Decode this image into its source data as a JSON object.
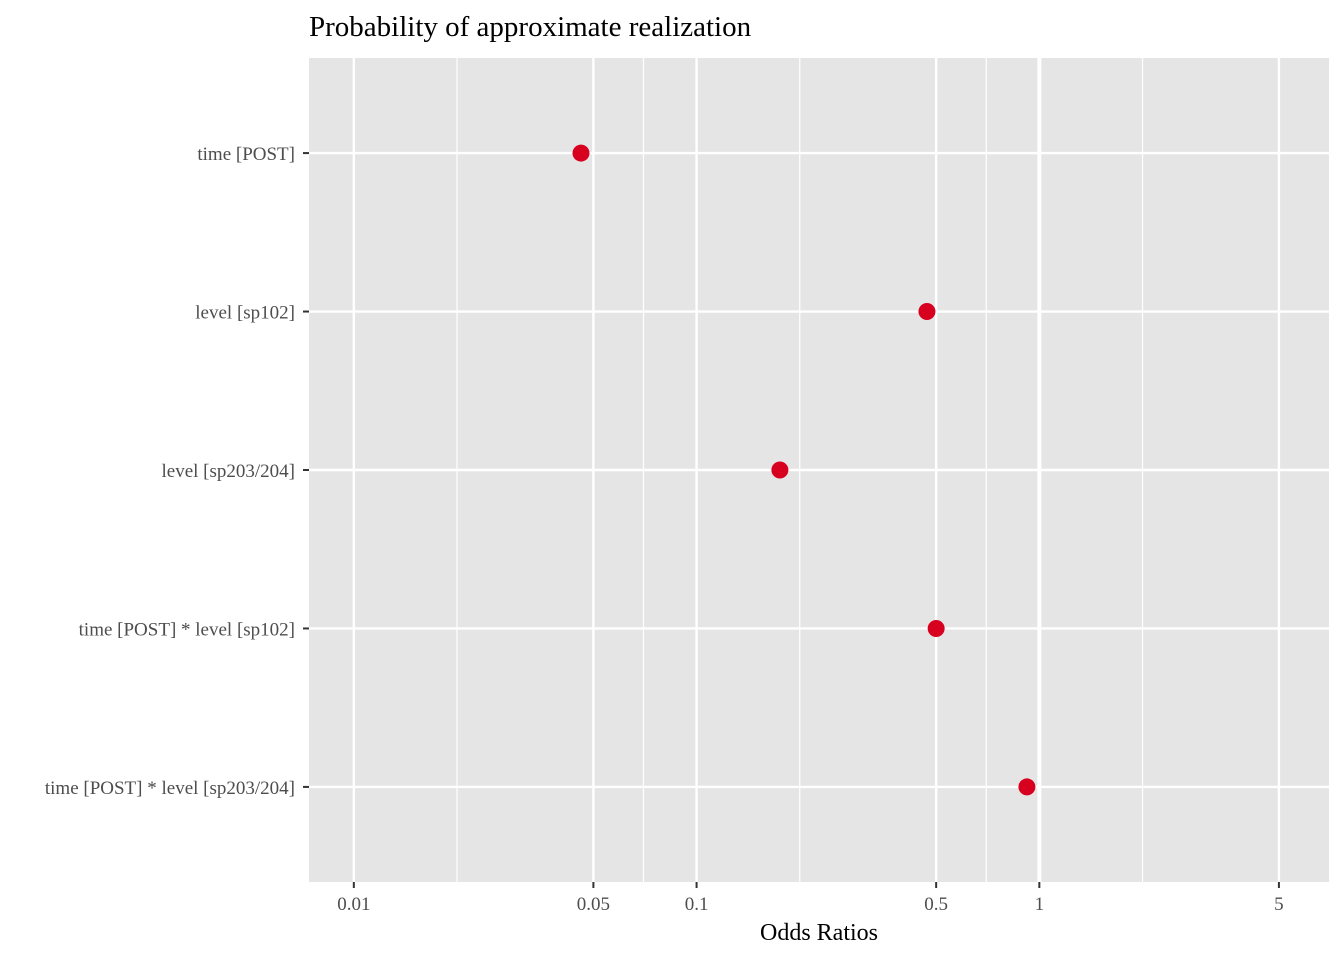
{
  "chart_data": {
    "type": "scatter",
    "title": "Probability of approximate realization",
    "xlabel": "Odds Ratios",
    "ylabel": "",
    "x_scale": "log10",
    "xlim": [
      0.0074,
      7.0
    ],
    "x_ticks": [
      {
        "value": 0.01,
        "label": "0.01"
      },
      {
        "value": 0.05,
        "label": "0.05"
      },
      {
        "value": 0.1,
        "label": "0.1"
      },
      {
        "value": 0.5,
        "label": "0.5"
      },
      {
        "value": 1,
        "label": "1"
      },
      {
        "value": 5,
        "label": "5"
      }
    ],
    "x_minor_gridlines": [
      0.02,
      0.07,
      0.2,
      0.7,
      2
    ],
    "reference_line": 1,
    "grid": true,
    "categories": [
      "time [POST]",
      "level [sp102]",
      "level [sp203/204]",
      "time [POST] * level [sp102]",
      "time [POST] * level [sp203/204]"
    ],
    "values": [
      0.046,
      0.47,
      0.175,
      0.5,
      0.92
    ],
    "point_color": "#d7001e",
    "panel_color": "#e5e5e5",
    "grid_color": "#ffffff"
  }
}
